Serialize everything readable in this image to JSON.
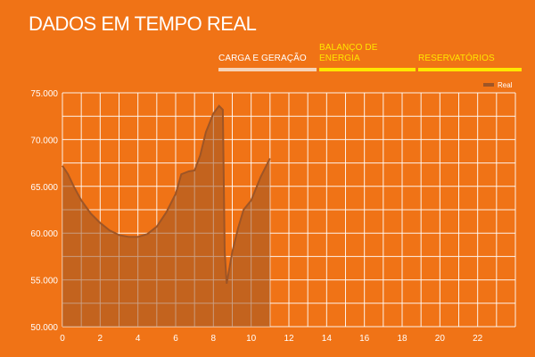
{
  "header": {
    "title": "DADOS EM TEMPO REAL"
  },
  "tabs": [
    {
      "label": "CARGA E GERAÇÃO",
      "active": true
    },
    {
      "label": "BALANÇO DE ENERGIA",
      "active": false
    },
    {
      "label": "RESERVATÓRIOS",
      "active": false
    }
  ],
  "colors": {
    "background": "#f07316",
    "series": "#9e5526",
    "grid": "#ffffff",
    "tab_active": "#f6d3b7",
    "tab_inactive": "#ffe600"
  },
  "chart_data": {
    "type": "area",
    "title": "",
    "xlabel": "",
    "ylabel": "",
    "xlim": [
      0,
      24
    ],
    "ylim": [
      50000,
      75000
    ],
    "grid": true,
    "legend_position": "top-right",
    "x_ticks": [
      0,
      2,
      4,
      6,
      8,
      10,
      12,
      14,
      16,
      18,
      20,
      22
    ],
    "x_tick_labels": [
      "0",
      "2",
      "4",
      "6",
      "8",
      "10",
      "12",
      "14",
      "16",
      "18",
      "20",
      "22"
    ],
    "y_ticks": [
      50000,
      55000,
      60000,
      65000,
      70000,
      75000
    ],
    "y_tick_labels": [
      "50.000",
      "55.000",
      "60.000",
      "65.000",
      "70.000",
      "75.000"
    ],
    "series": [
      {
        "name": "Real",
        "color": "#9e5526",
        "x": [
          0,
          0.3,
          0.6,
          1,
          1.5,
          2,
          2.5,
          3,
          3.5,
          4,
          4.5,
          5,
          5.5,
          6,
          6.3,
          6.7,
          7,
          7.3,
          7.6,
          8,
          8.3,
          8.5,
          8.6,
          8.7,
          9,
          9.3,
          9.6,
          10,
          10.5,
          11
        ],
        "values": [
          67200,
          66300,
          65000,
          63500,
          62100,
          61100,
          60300,
          59800,
          59600,
          59600,
          59900,
          60700,
          62200,
          64200,
          66300,
          66600,
          66700,
          68300,
          70800,
          72800,
          73600,
          73200,
          58000,
          54600,
          58000,
          60500,
          62500,
          63500,
          66000,
          68000
        ]
      }
    ]
  }
}
